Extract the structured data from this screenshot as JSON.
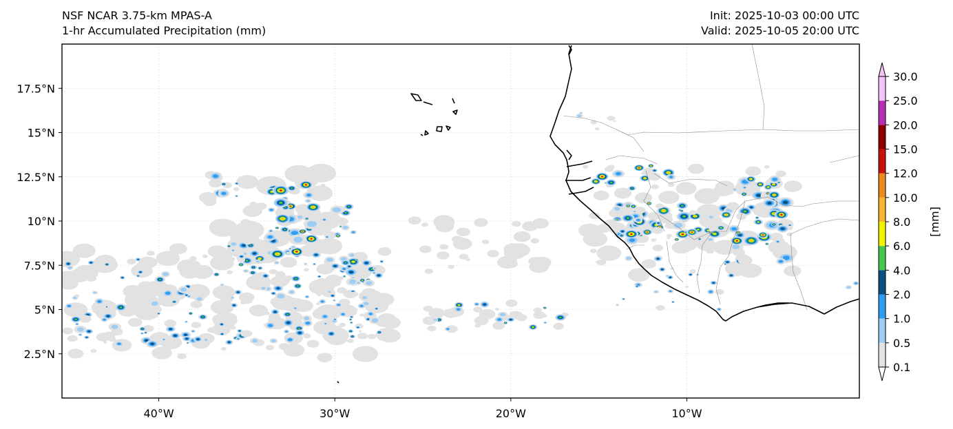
{
  "header": {
    "model": "NSF NCAR 3.75-km MPAS-A",
    "field": "1-hr Accumulated Precipitation (mm)",
    "init": "Init: 2025-10-03 00:00 UTC",
    "valid": "Valid: 2025-10-05 20:00 UTC"
  },
  "map": {
    "extent": {
      "lon": [
        -45.5,
        -0.2
      ],
      "lat": [
        0.0,
        20.0
      ]
    },
    "lon_ticks": [
      {
        "value": -40,
        "label": "40°W"
      },
      {
        "value": -30,
        "label": "30°W"
      },
      {
        "value": -20,
        "label": "20°W"
      },
      {
        "value": -10,
        "label": "10°W"
      }
    ],
    "lat_ticks": [
      {
        "value": 17.5,
        "label": "17.5°N"
      },
      {
        "value": 15,
        "label": "15°N"
      },
      {
        "value": 12.5,
        "label": "12.5°N"
      },
      {
        "value": 10,
        "label": "10°N"
      },
      {
        "value": 7.5,
        "label": "7.5°N"
      },
      {
        "value": 5,
        "label": "5°N"
      },
      {
        "value": 2.5,
        "label": "2.5°N"
      }
    ],
    "gridlines": true
  },
  "colorbar": {
    "label": "[mm]",
    "levels": [
      "0.1",
      "0.5",
      "1.0",
      "2.0",
      "4.0",
      "6.0",
      "8.0",
      "10.0",
      "12.0",
      "15.0",
      "20.0",
      "25.0",
      "30.0"
    ],
    "colors": [
      "#e2e2e2",
      "#9dcdf5",
      "#2f9cf0",
      "#0a4f7e",
      "#47c74f",
      "#f5f200",
      "#f5b52f",
      "#ec8a1e",
      "#c80f0f",
      "#8e0000",
      "#b62fb6",
      "#f7c2f7"
    ],
    "extend": "both"
  }
}
